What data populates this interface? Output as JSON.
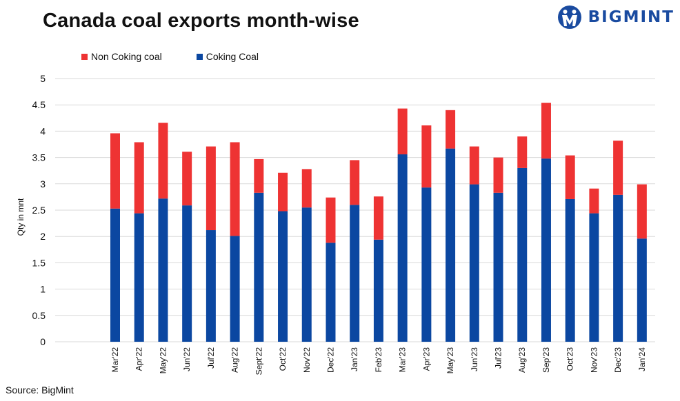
{
  "title": "Canada coal exports month-wise",
  "brand": {
    "name": "BIGMINT",
    "color": "#1a4ba0",
    "icon": "bigmint-logo-icon"
  },
  "source": "Source: BigMint",
  "legend": [
    {
      "label": "Non Coking coal",
      "color": "#ee3333"
    },
    {
      "label": "Coking Coal",
      "color": "#0b47a1"
    }
  ],
  "chart_data": {
    "type": "bar",
    "stacked": true,
    "title": "Canada coal exports month-wise",
    "xlabel": "",
    "ylabel": "Qty in mnt",
    "ylim": [
      0,
      5
    ],
    "yticks": [
      0,
      0.5,
      1,
      1.5,
      2,
      2.5,
      3,
      3.5,
      4,
      4.5,
      5
    ],
    "ytick_labels": [
      "0",
      "0.5",
      "1",
      "1.5",
      "2",
      "2.5",
      "3",
      "3.5",
      "4",
      "4.5",
      "5"
    ],
    "grid": true,
    "legend_position": "top-left",
    "categories": [
      "Mar'22",
      "Apr'22",
      "May'22",
      "Jun'22",
      "Jul'22",
      "Aug'22",
      "Sept'22",
      "Oct'22",
      "Nov'22",
      "Dec'22",
      "Jan'23",
      "Feb'23",
      "Mar'23",
      "Apr'23",
      "May'23",
      "Jun'23",
      "Jul'23",
      "Aug'23",
      "Sep'23",
      "Oct'23",
      "Nov'23",
      "Dec'23",
      "Jan'24"
    ],
    "series": [
      {
        "name": "Coking Coal",
        "color": "#0b47a1",
        "values": [
          2.53,
          2.44,
          2.72,
          2.59,
          2.12,
          2.01,
          2.83,
          2.48,
          2.55,
          1.88,
          2.6,
          1.94,
          3.56,
          2.93,
          3.67,
          2.99,
          2.83,
          3.3,
          3.48,
          2.71,
          2.44,
          2.79,
          1.96
        ]
      },
      {
        "name": "Non Coking coal",
        "color": "#ee3333",
        "values": [
          1.43,
          1.35,
          1.44,
          1.02,
          1.59,
          1.78,
          0.64,
          0.73,
          0.73,
          0.86,
          0.85,
          0.82,
          0.87,
          1.18,
          0.73,
          0.72,
          0.67,
          0.6,
          1.06,
          0.83,
          0.47,
          1.03,
          1.03
        ]
      }
    ]
  }
}
